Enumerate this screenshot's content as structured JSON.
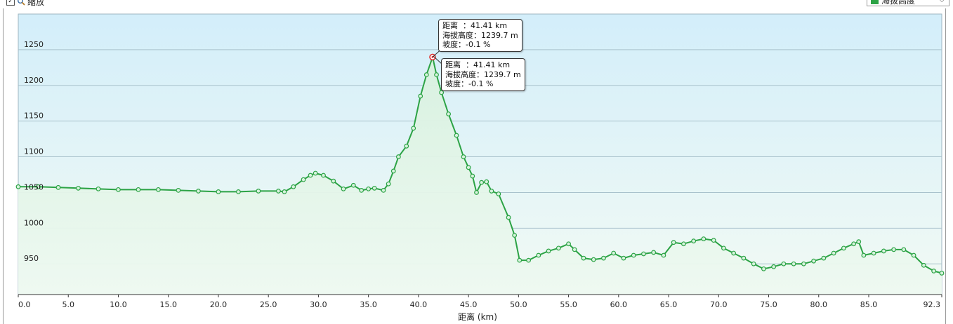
{
  "toolbar": {
    "zoom_label": "缩放",
    "zoom_checked": true,
    "series_select": {
      "selected": "海拔高度",
      "swatch_color": "#2ca345"
    }
  },
  "tooltips": [
    {
      "distance": "距离  ：41.41 km",
      "altitude": "海拔高度：1239.7 m",
      "slope": "坡度：-0.1 %"
    },
    {
      "distance": "距离  ：41.41 km",
      "altitude": "海拔高度：1239.7 m",
      "slope": "坡度：-0.1 %"
    }
  ],
  "chart_data": {
    "type": "area",
    "title": "",
    "xlabel": "距离  (km)",
    "ylabel": "",
    "xlim": [
      0,
      92.3
    ],
    "ylim": [
      907,
      1300
    ],
    "grid": true,
    "line_color": "#2ca345",
    "fill_color_top": "#dff3e6",
    "background_top": "#d3eefa",
    "background_bottom": "#f2faf4",
    "x_ticks": [
      "0.0",
      "5.0",
      "10.0",
      "15.0",
      "20.0",
      "25.0",
      "30.0",
      "35.0",
      "40.0",
      "45.0",
      "50.0",
      "55.0",
      "60.0",
      "65.0",
      "70.0",
      "75.0",
      "80.0",
      "85.0",
      "92.3"
    ],
    "y_ticks": [
      "950",
      "1000",
      "1050",
      "1100",
      "1150",
      "1200",
      "1250"
    ],
    "highlight": {
      "x": 41.41,
      "y": 1239.7
    },
    "series": [
      {
        "x": [
          0,
          2,
          4,
          6,
          8,
          10,
          12,
          14,
          16,
          18,
          20,
          22,
          24,
          26,
          26.6,
          27.5,
          28.5,
          29.2,
          29.7,
          30.5,
          31.5,
          32.5,
          33.5,
          34.3,
          35,
          35.6,
          36.5,
          37,
          37.5,
          38,
          38.8,
          39.5,
          40.2,
          40.8,
          41.41,
          41.8,
          42.3,
          43,
          43.8,
          44.5,
          45,
          45.4,
          45.8,
          46.3,
          46.8,
          47.3,
          48,
          49,
          49.6,
          50.1,
          51,
          52,
          53,
          54,
          55,
          55.6,
          56.5,
          57.5,
          58.5,
          59.5,
          60.5,
          61.5,
          62.5,
          63.5,
          64.5,
          65.5,
          66.5,
          67.5,
          68.5,
          69.5,
          70.5,
          71.5,
          72.5,
          73.5,
          74.5,
          75.5,
          76.5,
          77.5,
          78.5,
          79.5,
          80.5,
          81.5,
          82.5,
          83.5,
          84,
          84.5,
          85.5,
          86.5,
          87.5,
          88.5,
          89.5,
          90.5,
          91.5,
          92.3
        ],
        "y": [
          1058,
          1058,
          1057,
          1056,
          1055,
          1054,
          1054,
          1054,
          1053,
          1052,
          1051,
          1051,
          1052,
          1052,
          1051,
          1058,
          1068,
          1074,
          1077,
          1074,
          1066,
          1055,
          1060,
          1053,
          1055,
          1056,
          1053,
          1062,
          1080,
          1100,
          1115,
          1140,
          1185,
          1215,
          1239.7,
          1215,
          1190,
          1160,
          1130,
          1100,
          1085,
          1073,
          1050,
          1064,
          1065,
          1052,
          1048,
          1015,
          990,
          955,
          955,
          962,
          968,
          972,
          978,
          970,
          958,
          956,
          958,
          965,
          958,
          962,
          964,
          966,
          962,
          980,
          978,
          982,
          985,
          983,
          972,
          965,
          958,
          950,
          943,
          946,
          950,
          950,
          950,
          954,
          958,
          965,
          972,
          978,
          981,
          962,
          965,
          968,
          970,
          970,
          962,
          948,
          940,
          937
        ]
      }
    ]
  }
}
